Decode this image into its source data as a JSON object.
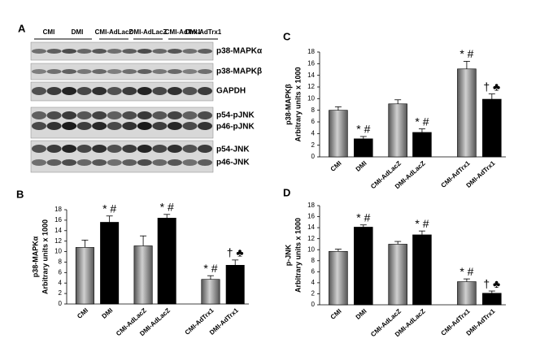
{
  "blot": {
    "panel": "A",
    "lanes": [
      "CMI",
      "DMI",
      "CMI-AdLacZ",
      "DMI-AdLacZ",
      "CMI-AdTrx1",
      "DMI-AdTrx1"
    ],
    "rows": [
      "p38-MAPKα",
      "p38-MAPKβ",
      "GAPDH",
      "p54-pJNK",
      "p46-pJNK",
      "p54-JNK",
      "p46-JNK"
    ]
  },
  "chart_data": [
    {
      "type": "bar",
      "panel": "B",
      "ylabel": [
        "p38-MAPKα",
        "Arbitrary units x 1000"
      ],
      "categories": [
        "CMI",
        "DMI",
        "CMI-AdLacZ",
        "DMI-AdLacZ",
        "CMI-AdTrx1",
        "DMI-AdTrx1"
      ],
      "values": [
        10.8,
        15.6,
        11.1,
        16.4,
        4.7,
        7.4
      ],
      "errors": [
        1.4,
        1.2,
        1.9,
        0.7,
        0.7,
        1.0
      ],
      "colors": [
        "#9a9a9a",
        "#000000",
        "#9a9a9a",
        "#000000",
        "#9a9a9a",
        "#000000"
      ],
      "annotations": [
        null,
        "* #",
        null,
        "* #",
        "* #",
        "† ♣"
      ],
      "ylim": [
        0,
        18
      ],
      "yticks": [
        0,
        2,
        4,
        6,
        8,
        10,
        12,
        14,
        16,
        18
      ]
    },
    {
      "type": "bar",
      "panel": "C",
      "ylabel": [
        "p38-MAPKβ",
        "Arbitrary units x 1000"
      ],
      "categories": [
        "CMI",
        "DMI",
        "CMI-AdLacZ",
        "DMI-AdLacZ",
        "CMI-AdTrx1",
        "DMI-AdTrx1"
      ],
      "values": [
        8.0,
        3.1,
        9.1,
        4.2,
        15.1,
        9.9
      ],
      "errors": [
        0.6,
        0.4,
        0.7,
        0.6,
        1.3,
        0.9
      ],
      "colors": [
        "#9a9a9a",
        "#000000",
        "#9a9a9a",
        "#000000",
        "#9a9a9a",
        "#000000"
      ],
      "annotations": [
        null,
        "* #",
        null,
        "* #",
        "* #",
        "† ♣"
      ],
      "ylim": [
        0,
        18
      ],
      "yticks": [
        0,
        2,
        4,
        6,
        8,
        10,
        12,
        14,
        16,
        18
      ]
    },
    {
      "type": "bar",
      "panel": "D",
      "ylabel": [
        "p-JNK",
        "Arbitrary units x 1000"
      ],
      "categories": [
        "CMI",
        "DMI",
        "CMI-AdLacZ",
        "DMI-AdLacZ",
        "CMI-AdTrx1",
        "DMI-AdTrx1"
      ],
      "values": [
        9.7,
        14.1,
        11.0,
        12.7,
        4.2,
        2.1
      ],
      "errors": [
        0.4,
        0.4,
        0.5,
        0.7,
        0.5,
        0.4
      ],
      "colors": [
        "#9a9a9a",
        "#000000",
        "#9a9a9a",
        "#000000",
        "#9a9a9a",
        "#000000"
      ],
      "annotations": [
        null,
        "* #",
        null,
        "* #",
        "* #",
        "† ♣"
      ],
      "ylim": [
        0,
        18
      ],
      "yticks": [
        0,
        2,
        4,
        6,
        8,
        10,
        12,
        14,
        16,
        18
      ]
    }
  ]
}
